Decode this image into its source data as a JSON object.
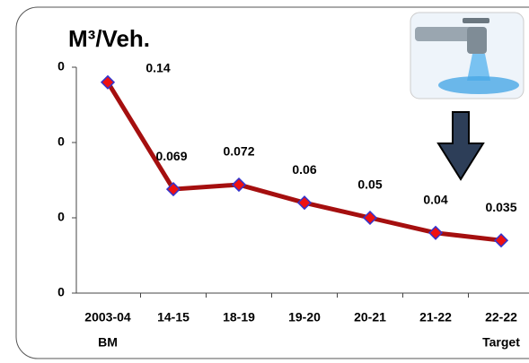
{
  "chart_data": {
    "type": "line",
    "title": "M³/Veh.",
    "categories": [
      "2003-04",
      "14-15",
      "18-19",
      "19-20",
      "20-21",
      "21-22",
      "22-22"
    ],
    "category_sublabels": [
      "BM",
      null,
      null,
      null,
      null,
      null,
      "Target"
    ],
    "series": [
      {
        "name": "M³/Veh.",
        "color": "#a50f0f",
        "marker_color": "#ee1111",
        "marker_edge": "#3333cc",
        "values": [
          0.14,
          0.069,
          0.072,
          0.06,
          0.05,
          0.04,
          0.035
        ]
      }
    ],
    "ylim": [
      0,
      0.15
    ],
    "yticks": [
      {
        "value": 0,
        "label": "0"
      },
      {
        "value": 0.05,
        "label": "0"
      },
      {
        "value": 0.1,
        "label": "0"
      },
      {
        "value": 0.15,
        "label": "0"
      }
    ]
  }
}
